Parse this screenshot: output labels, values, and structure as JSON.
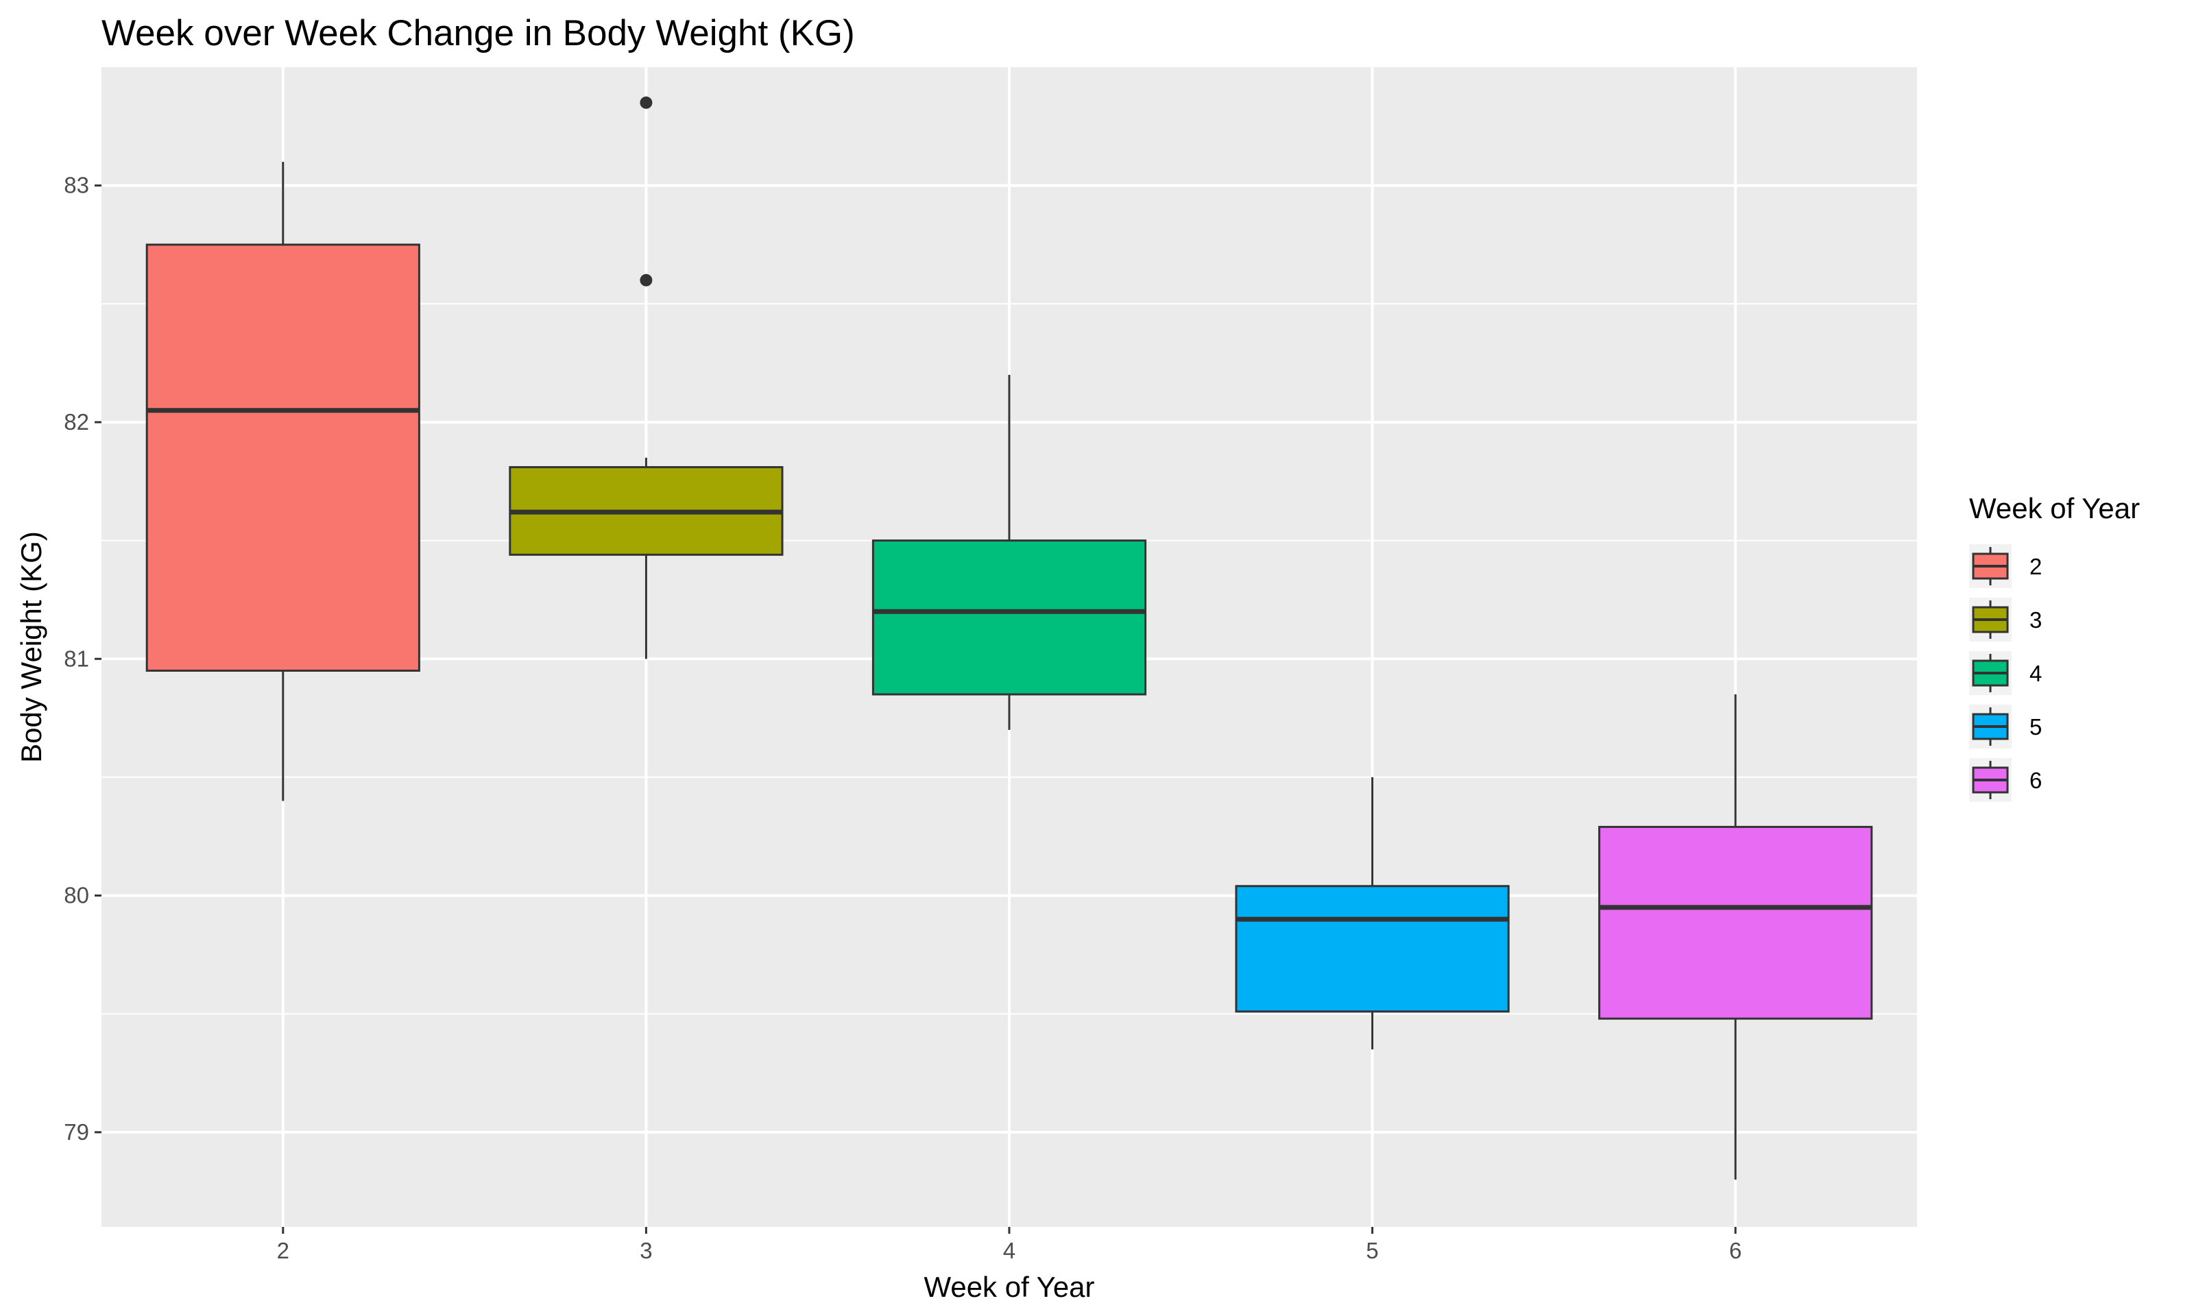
{
  "chart_data": {
    "type": "boxplot",
    "title": "Week over Week Change in Body Weight (KG)",
    "xlabel": "Week of Year",
    "ylabel": "Body Weight (KG)",
    "categories": [
      "2",
      "3",
      "4",
      "5",
      "6"
    ],
    "ylim": [
      78.6,
      83.5
    ],
    "yticks": [
      79,
      80,
      81,
      82,
      83
    ],
    "yticks_labels": [
      "79",
      "80",
      "81",
      "82",
      "83"
    ],
    "grid": true,
    "legend": {
      "title": "Week of Year",
      "placement": "right"
    },
    "series": [
      {
        "name": "2",
        "color": "#F8766D",
        "whisker_low": 80.4,
        "q1": 80.95,
        "median": 82.05,
        "q3": 82.75,
        "whisker_high": 83.1,
        "outliers": []
      },
      {
        "name": "3",
        "color": "#A3A500",
        "whisker_low": 81.0,
        "q1": 81.44,
        "median": 81.62,
        "q3": 81.81,
        "whisker_high": 81.85,
        "outliers": [
          83.35,
          82.6
        ]
      },
      {
        "name": "4",
        "color": "#00BF7D",
        "whisker_low": 80.7,
        "q1": 80.85,
        "median": 81.2,
        "q3": 81.5,
        "whisker_high": 82.2,
        "outliers": []
      },
      {
        "name": "5",
        "color": "#00B0F6",
        "whisker_low": 79.35,
        "q1": 79.51,
        "median": 79.9,
        "q3": 80.04,
        "whisker_high": 80.5,
        "outliers": []
      },
      {
        "name": "6",
        "color": "#E76BF3",
        "whisker_low": 78.8,
        "q1": 79.48,
        "median": 79.95,
        "q3": 80.29,
        "whisker_high": 80.85,
        "outliers": []
      }
    ]
  }
}
